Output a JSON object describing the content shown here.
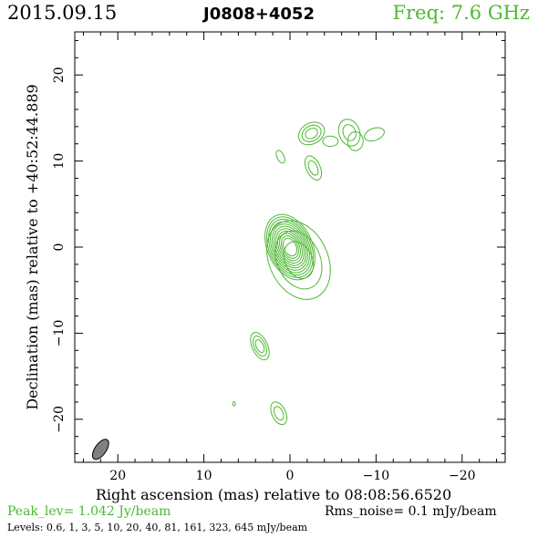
{
  "header": {
    "date": "2015.09.15",
    "source": "J0808+4052",
    "frequency": "Freq:  7.6  GHz"
  },
  "footer": {
    "peak": "Peak_lev=  1.042 Jy/beam",
    "rms": "Rms_noise=  0.1 mJy/beam",
    "levels": "Levels: 0.6,   1,   3,   5,  10,  20,  40,  81, 161, 323, 645 mJy/beam"
  },
  "colors": {
    "contour": "#4db834",
    "beam": "#808080",
    "frame": "#000000"
  },
  "chart_data": {
    "type": "contour",
    "xlabel": "Right ascension (mas) relative to 08:08:56.6520",
    "ylabel": "Declination (mas) relative to +40:52:44.889",
    "xlim": [
      25,
      -25
    ],
    "ylim": [
      -25,
      25
    ],
    "x_ticks": [
      20,
      10,
      0,
      -10,
      -20
    ],
    "x_tick_labels": [
      "20",
      "10",
      "0",
      "−10",
      "−20"
    ],
    "y_ticks": [
      20,
      10,
      0,
      -10,
      -20
    ],
    "y_tick_labels": [
      "20",
      "10",
      "0",
      "−10",
      "−20"
    ],
    "contour_levels_mJy": [
      0.6,
      1,
      3,
      5,
      10,
      20,
      40,
      81,
      161,
      323,
      645
    ],
    "beam": {
      "x": 22,
      "y": -23.5,
      "major": 2.7,
      "minor": 1.3,
      "pa_deg": 35
    },
    "components": [
      {
        "x": 0,
        "y": 0,
        "sx": 2.6,
        "sy": 4.0,
        "rot": -25,
        "n": 11
      },
      {
        "x": -1,
        "y": -1.5,
        "sx": 3.4,
        "sy": 4.8,
        "rot": -25,
        "n": 3
      },
      {
        "x": -2.5,
        "y": 13.2,
        "sx": 1.6,
        "sy": 1.2,
        "rot": -30,
        "n": 3
      },
      {
        "x": -4.7,
        "y": 12.3,
        "sx": 0.9,
        "sy": 0.6,
        "rot": 0,
        "n": 1
      },
      {
        "x": -6.9,
        "y": 13.3,
        "sx": 1.2,
        "sy": 1.6,
        "rot": -20,
        "n": 2
      },
      {
        "x": -9.8,
        "y": 13.1,
        "sx": 1.2,
        "sy": 0.7,
        "rot": -20,
        "n": 1
      },
      {
        "x": -7.6,
        "y": 12.3,
        "sx": 0.9,
        "sy": 1.1,
        "rot": 0,
        "n": 1
      },
      {
        "x": -2.7,
        "y": 9.2,
        "sx": 0.8,
        "sy": 1.5,
        "rot": -25,
        "n": 2
      },
      {
        "x": 1.1,
        "y": 10.5,
        "sx": 0.4,
        "sy": 0.8,
        "rot": -25,
        "n": 1
      },
      {
        "x": 3.5,
        "y": -11.5,
        "sx": 0.9,
        "sy": 1.7,
        "rot": -25,
        "n": 3
      },
      {
        "x": 1.3,
        "y": -19.3,
        "sx": 0.8,
        "sy": 1.4,
        "rot": -25,
        "n": 2
      },
      {
        "x": 6.5,
        "y": -18.2,
        "sx": 0.15,
        "sy": 0.25,
        "rot": 0,
        "n": 1
      }
    ]
  }
}
